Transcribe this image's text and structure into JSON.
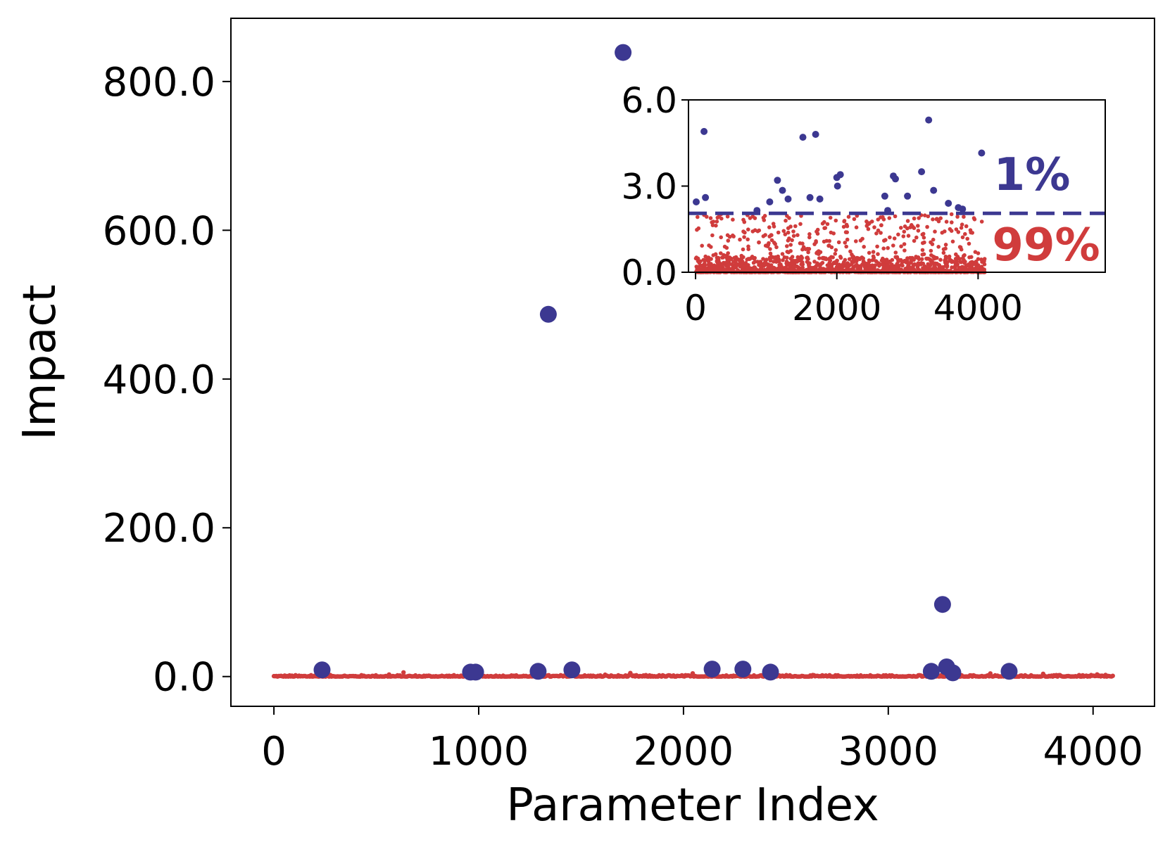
{
  "chart_data": [
    {
      "type": "scatter",
      "xlabel": "Parameter Index",
      "ylabel": "Impact",
      "xlim": [
        -210,
        4300
      ],
      "ylim": [
        -40,
        885
      ],
      "xticks": [
        0,
        1000,
        2000,
        3000,
        4000
      ],
      "xtick_labels": [
        "0",
        "1000",
        "2000",
        "3000",
        "4000"
      ],
      "yticks": [
        0,
        200,
        400,
        600,
        800
      ],
      "ytick_labels": [
        "0.0",
        "200.0",
        "400.0",
        "600.0",
        "800.0"
      ],
      "series": [
        {
          "color": "#3c3891",
          "points": [
            [
              235,
              9
            ],
            [
              960,
              6
            ],
            [
              985,
              6
            ],
            [
              1290,
              7
            ],
            [
              1455,
              9
            ],
            [
              1340,
              487
            ],
            [
              1705,
              839
            ],
            [
              2140,
              10
            ],
            [
              2290,
              10
            ],
            [
              2425,
              6
            ],
            [
              3210,
              7
            ],
            [
              3265,
              97
            ],
            [
              3285,
              13
            ],
            [
              3315,
              5
            ],
            [
              3590,
              7
            ]
          ]
        },
        {
          "color": "#d03c3c",
          "noise_range": [
            0,
            4096
          ],
          "noise_max": 2
        }
      ]
    },
    {
      "type": "scatter",
      "inset": true,
      "xlim": [
        -100,
        5800
      ],
      "ylim": [
        0,
        6
      ],
      "xticks": [
        0,
        2000,
        4000
      ],
      "xtick_labels": [
        "0",
        "2000",
        "4000"
      ],
      "yticks": [
        0,
        3,
        6
      ],
      "ytick_labels": [
        "0.0",
        "3.0",
        "6.0"
      ],
      "threshold": 2.05,
      "annotations": [
        {
          "text": "1%",
          "color": "#3c3891"
        },
        {
          "text": "99%",
          "color": "#d03c3c"
        }
      ],
      "series": [
        {
          "color": "#3c3891",
          "points": [
            [
              10,
              2.45
            ],
            [
              120,
              4.9
            ],
            [
              140,
              2.6
            ],
            [
              870,
              2.15
            ],
            [
              1050,
              2.45
            ],
            [
              1160,
              3.2
            ],
            [
              1230,
              2.85
            ],
            [
              1310,
              2.55
            ],
            [
              1520,
              4.7
            ],
            [
              1620,
              2.6
            ],
            [
              1700,
              4.8
            ],
            [
              1760,
              2.55
            ],
            [
              2000,
              3.3
            ],
            [
              2050,
              3.4
            ],
            [
              2010,
              3.0
            ],
            [
              2680,
              2.65
            ],
            [
              2720,
              2.15
            ],
            [
              2800,
              3.35
            ],
            [
              2830,
              3.25
            ],
            [
              3000,
              2.65
            ],
            [
              3200,
              3.5
            ],
            [
              3300,
              5.3
            ],
            [
              3370,
              2.85
            ],
            [
              3580,
              2.4
            ],
            [
              3720,
              2.25
            ],
            [
              3780,
              2.2
            ],
            [
              4050,
              4.15
            ]
          ]
        },
        {
          "color": "#d03c3c",
          "noise_range": [
            0,
            4096
          ],
          "noise_max": 2.05
        }
      ]
    }
  ]
}
